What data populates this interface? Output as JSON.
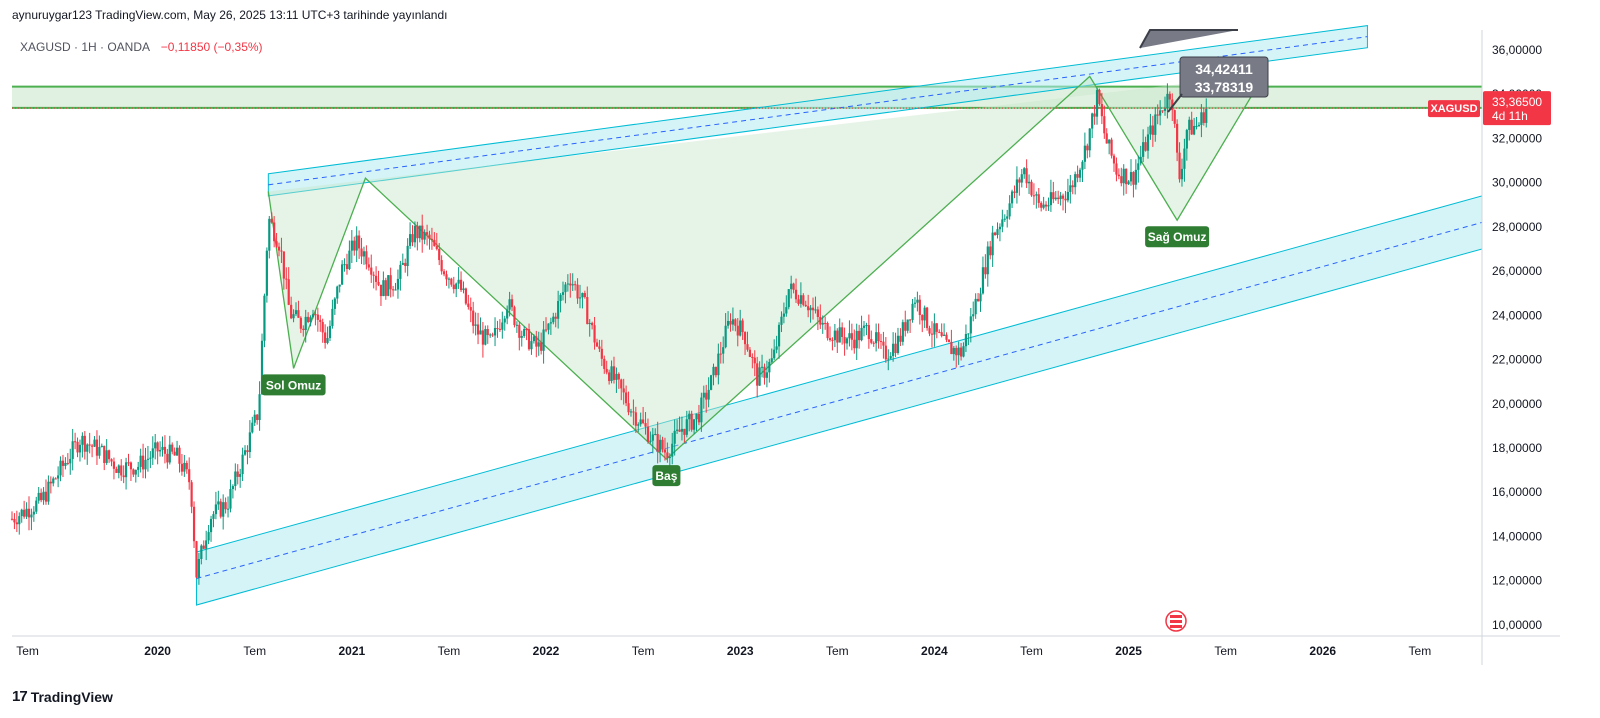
{
  "header": {
    "published": "aynuruygar123 TradingView.com, May 26, 2025 13:11 UTC+3 tarihinde yayınlandı"
  },
  "symbol": {
    "name": "XAGUSD · 1H · OANDA",
    "change": "−0,11850 (−0,35%)"
  },
  "price_tag": {
    "symbol": "XAGUSD",
    "price": "33,36500",
    "countdown": "4d 11h",
    "color": "#f23645"
  },
  "callouts": [
    "34,42411",
    "33,78319"
  ],
  "pattern_labels": {
    "left_shoulder": "Sol Omuz",
    "head": "Baş",
    "right_shoulder": "Sağ Omuz"
  },
  "footer": {
    "brand": "TradingView"
  },
  "colors": {
    "up": "#089981",
    "down": "#f23645",
    "pattern_line": "#4caf50",
    "pattern_fill": "#c8e6c9",
    "channel": "#00bcd4",
    "channel_fill": "#b2ebf2",
    "label_bg": "#2e7d32"
  },
  "chart_data": {
    "type": "candlestick",
    "y_axis": {
      "ticks": [
        "10,00000",
        "12,00000",
        "14,00000",
        "16,00000",
        "18,00000",
        "20,00000",
        "22,00000",
        "24,00000",
        "26,00000",
        "28,00000",
        "30,00000",
        "32,00000",
        "34,00000",
        "36,00000"
      ],
      "range": [
        9.5,
        36.9
      ],
      "position": "right"
    },
    "x_axis": {
      "ticks": [
        "Tem",
        "2020",
        "Tem",
        "2021",
        "Tem",
        "2022",
        "Tem",
        "2023",
        "Tem",
        "2024",
        "Tem",
        "2025",
        "Tem",
        "2026",
        "Tem"
      ],
      "bold_ticks": [
        "2020",
        "2021",
        "2022",
        "2023",
        "2024",
        "2025",
        "2026"
      ],
      "range": [
        2019.25,
        2026.82
      ]
    },
    "close_series": [
      [
        2019.25,
        14.8
      ],
      [
        2019.4,
        15.6
      ],
      [
        2019.52,
        17.3
      ],
      [
        2019.6,
        18.4
      ],
      [
        2019.7,
        17.9
      ],
      [
        2019.8,
        17.1
      ],
      [
        2019.9,
        17.2
      ],
      [
        2020.0,
        17.9
      ],
      [
        2020.1,
        17.6
      ],
      [
        2020.17,
        16.4
      ],
      [
        2020.2,
        12.3
      ],
      [
        2020.27,
        14.9
      ],
      [
        2020.36,
        15.5
      ],
      [
        2020.45,
        17.8
      ],
      [
        2020.52,
        19.7
      ],
      [
        2020.57,
        28.4
      ],
      [
        2020.63,
        27.2
      ],
      [
        2020.68,
        24.1
      ],
      [
        2020.74,
        23.6
      ],
      [
        2020.8,
        24.4
      ],
      [
        2020.87,
        22.8
      ],
      [
        2020.95,
        26.1
      ],
      [
        2021.02,
        27.3
      ],
      [
        2021.09,
        26.5
      ],
      [
        2021.15,
        25.2
      ],
      [
        2021.24,
        25.6
      ],
      [
        2021.32,
        27.8
      ],
      [
        2021.4,
        27.4
      ],
      [
        2021.48,
        26.0
      ],
      [
        2021.56,
        25.2
      ],
      [
        2021.64,
        23.3
      ],
      [
        2021.72,
        22.7
      ],
      [
        2021.8,
        24.6
      ],
      [
        2021.88,
        23.1
      ],
      [
        2021.96,
        22.5
      ],
      [
        2022.03,
        23.7
      ],
      [
        2022.12,
        25.8
      ],
      [
        2022.2,
        24.4
      ],
      [
        2022.28,
        22.1
      ],
      [
        2022.35,
        21.1
      ],
      [
        2022.45,
        19.6
      ],
      [
        2022.55,
        18.4
      ],
      [
        2022.62,
        17.8
      ],
      [
        2022.7,
        18.9
      ],
      [
        2022.78,
        19.4
      ],
      [
        2022.86,
        21.2
      ],
      [
        2022.95,
        23.9
      ],
      [
        2023.02,
        23.2
      ],
      [
        2023.09,
        21.1
      ],
      [
        2023.17,
        22.0
      ],
      [
        2023.25,
        25.2
      ],
      [
        2023.33,
        24.8
      ],
      [
        2023.42,
        23.5
      ],
      [
        2023.5,
        23.1
      ],
      [
        2023.58,
        22.9
      ],
      [
        2023.66,
        23.4
      ],
      [
        2023.74,
        22.2
      ],
      [
        2023.82,
        22.9
      ],
      [
        2023.9,
        24.8
      ],
      [
        2023.98,
        23.4
      ],
      [
        2024.06,
        22.6
      ],
      [
        2024.14,
        22.3
      ],
      [
        2024.22,
        24.8
      ],
      [
        2024.3,
        27.6
      ],
      [
        2024.38,
        28.9
      ],
      [
        2024.46,
        30.6
      ],
      [
        2024.54,
        28.9
      ],
      [
        2024.62,
        29.2
      ],
      [
        2024.7,
        29.7
      ],
      [
        2024.78,
        31.6
      ],
      [
        2024.84,
        33.9
      ],
      [
        2024.88,
        32.0
      ],
      [
        2024.94,
        30.5
      ],
      [
        2025.02,
        30.2
      ],
      [
        2025.1,
        32.0
      ],
      [
        2025.16,
        33.2
      ],
      [
        2025.22,
        34.2
      ],
      [
        2025.26,
        30.1
      ],
      [
        2025.3,
        32.4
      ],
      [
        2025.36,
        32.6
      ],
      [
        2025.4,
        33.36
      ]
    ],
    "channel_upper": {
      "points": [
        [
          2020.57,
          29.9
        ],
        [
          2026.23,
          36.6
        ]
      ],
      "width": 0.5
    },
    "channel_lower": {
      "points": [
        [
          2020.2,
          12.1
        ],
        [
          2026.82,
          28.2
        ]
      ],
      "width": 1.2
    },
    "horizontal_zone": [
      33.38,
      34.34
    ],
    "head_and_shoulders": {
      "points": [
        [
          2020.57,
          29.6
        ],
        [
          2020.7,
          21.6
        ],
        [
          2021.07,
          30.2
        ],
        [
          2022.62,
          17.5
        ],
        [
          2024.8,
          34.8
        ],
        [
          2025.25,
          28.3
        ],
        [
          2025.7,
          34.9
        ]
      ],
      "labels": [
        {
          "key": "left_shoulder",
          "x": 2020.7,
          "y": 21.6
        },
        {
          "key": "head",
          "x": 2022.62,
          "y": 17.5
        },
        {
          "key": "right_shoulder",
          "x": 2025.25,
          "y": 28.3
        }
      ]
    }
  }
}
